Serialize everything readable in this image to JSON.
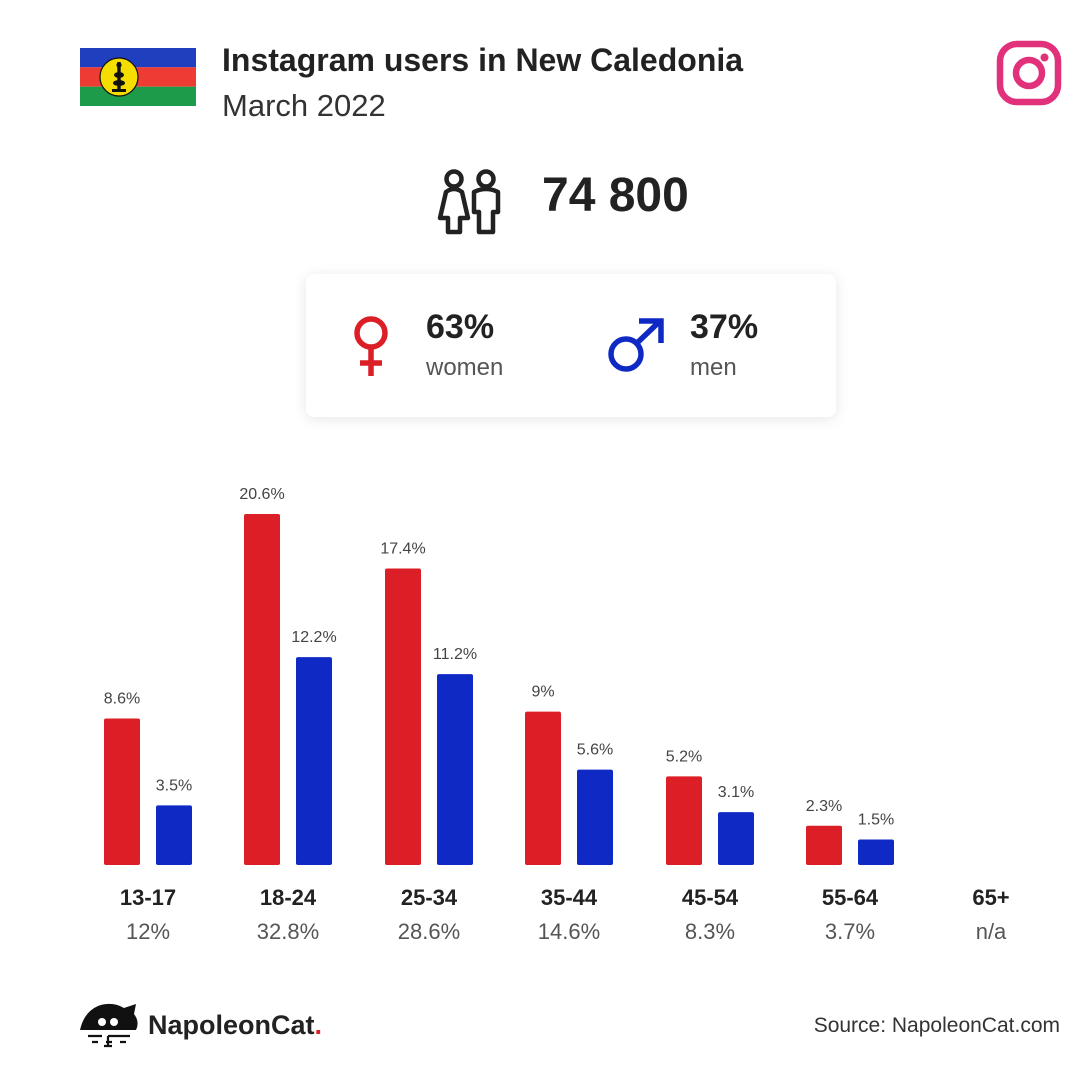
{
  "header": {
    "title": "Instagram users in New Caledonia",
    "subtitle": "March 2022",
    "flag_icon": "new-caledonia-flag-icon",
    "brand_icon": "instagram-icon"
  },
  "total": {
    "icon": "users-icon",
    "value": "74 800"
  },
  "gender": {
    "women": {
      "percent": "63%",
      "label": "women",
      "icon": "female-symbol-icon",
      "color": "#dc1f26"
    },
    "men": {
      "percent": "37%",
      "label": "men",
      "icon": "male-symbol-icon",
      "color": "#0f2ac4"
    }
  },
  "chart_data": {
    "type": "bar",
    "categories": [
      "13-17",
      "18-24",
      "25-34",
      "35-44",
      "45-54",
      "55-64",
      "65+"
    ],
    "category_totals": [
      "12%",
      "32.8%",
      "28.6%",
      "14.6%",
      "8.3%",
      "3.7%",
      "n/a"
    ],
    "series": [
      {
        "color": "#dc1f26",
        "values": [
          8.6,
          20.6,
          17.4,
          9,
          5.2,
          2.3,
          null
        ],
        "labels": [
          "8.6%",
          "20.6%",
          "17.4%",
          "9%",
          "5.2%",
          "2.3%",
          ""
        ]
      },
      {
        "color": "#0f2ac4",
        "values": [
          3.5,
          12.2,
          11.2,
          5.6,
          3.1,
          1.5,
          null
        ],
        "labels": [
          "3.5%",
          "12.2%",
          "11.2%",
          "5.6%",
          "3.1%",
          "1.5%",
          ""
        ]
      }
    ],
    "ylim": [
      0,
      20.6
    ],
    "grid": false,
    "legend": "none"
  },
  "footer": {
    "brand_name": "NapoleonCat",
    "brand_dot": ".",
    "brand_icon": "napoleoncat-logo-icon",
    "source": "Source: NapoleonCat.com"
  }
}
